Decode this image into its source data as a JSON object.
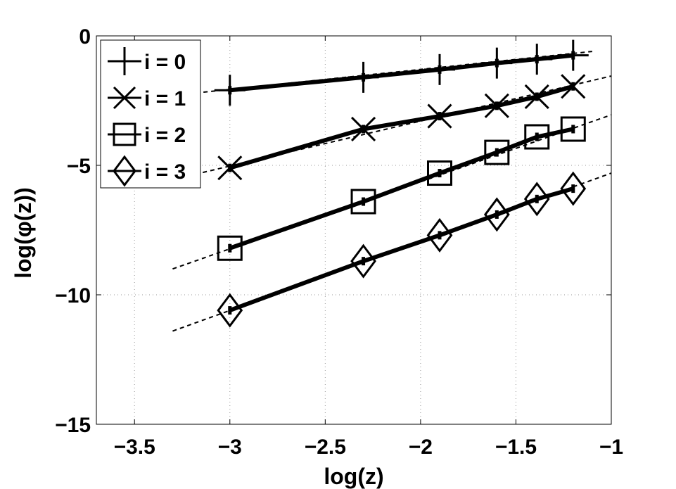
{
  "chart_data": {
    "type": "line",
    "xlabel": "log(z)",
    "ylabel": "log(φ(z))",
    "xlim": [
      -3.7,
      -1
    ],
    "ylim": [
      -15,
      0
    ],
    "x_ticks": [
      -3.5,
      -3,
      -2.5,
      -2,
      -1.5,
      -1
    ],
    "y_ticks": [
      0,
      -5,
      -10,
      -15
    ],
    "x_tick_labels": [
      "−3.5",
      "−3",
      "−2.5",
      "−2",
      "−1.5",
      "−1"
    ],
    "y_tick_labels": [
      "0",
      "−5",
      "−10",
      "−15"
    ],
    "grid": true,
    "legend_position": "top-left",
    "series": [
      {
        "name": "i = 0",
        "marker": "plus",
        "x": [
          -3.0,
          -2.3,
          -1.9,
          -1.6,
          -1.39,
          -1.2
        ],
        "y": [
          -2.1,
          -1.6,
          -1.3,
          -1.05,
          -0.9,
          -0.75
        ],
        "fit_x": [
          -3.3,
          -1.1
        ],
        "fit_y": [
          -2.3,
          -0.6
        ]
      },
      {
        "name": "i = 1",
        "marker": "x",
        "x": [
          -3.0,
          -2.3,
          -1.9,
          -1.6,
          -1.39,
          -1.2
        ],
        "y": [
          -5.1,
          -3.6,
          -3.1,
          -2.7,
          -2.35,
          -1.95
        ],
        "fit_x": [
          -3.3,
          -1.0
        ],
        "fit_y": [
          -5.55,
          -1.55
        ]
      },
      {
        "name": "i = 2",
        "marker": "square",
        "x": [
          -3.0,
          -2.3,
          -1.9,
          -1.6,
          -1.39,
          -1.2
        ],
        "y": [
          -8.2,
          -6.4,
          -5.3,
          -4.5,
          -3.9,
          -3.6
        ],
        "fit_x": [
          -3.3,
          -1.0
        ],
        "fit_y": [
          -9.0,
          -3.05
        ]
      },
      {
        "name": "i = 3",
        "marker": "diamond",
        "x": [
          -3.0,
          -2.3,
          -1.9,
          -1.6,
          -1.39,
          -1.2
        ],
        "y": [
          -10.6,
          -8.7,
          -7.7,
          -6.9,
          -6.3,
          -5.9
        ],
        "fit_x": [
          -3.3,
          -1.0
        ],
        "fit_y": [
          -11.4,
          -5.3
        ]
      }
    ]
  }
}
